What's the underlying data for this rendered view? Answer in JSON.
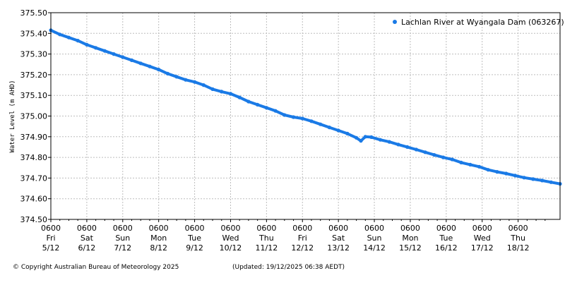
{
  "chart_data": {
    "type": "scatter",
    "ylabel": "Water Level (m AHD)",
    "ylim": [
      374.5,
      375.5
    ],
    "yticks": [
      "374.50",
      "374.60",
      "374.70",
      "374.80",
      "374.90",
      "375.00",
      "375.10",
      "375.20",
      "375.30",
      "375.40",
      "375.50"
    ],
    "xlim_hours": [
      0,
      340
    ],
    "xticks": [
      {
        "time": "0600",
        "day": "Fri",
        "date": "5/12"
      },
      {
        "time": "0600",
        "day": "Sat",
        "date": "6/12"
      },
      {
        "time": "0600",
        "day": "Sun",
        "date": "7/12"
      },
      {
        "time": "0600",
        "day": "Mon",
        "date": "8/12"
      },
      {
        "time": "0600",
        "day": "Tue",
        "date": "9/12"
      },
      {
        "time": "0600",
        "day": "Wed",
        "date": "10/12"
      },
      {
        "time": "0600",
        "day": "Thu",
        "date": "11/12"
      },
      {
        "time": "0600",
        "day": "Fri",
        "date": "12/12"
      },
      {
        "time": "0600",
        "day": "Sat",
        "date": "13/12"
      },
      {
        "time": "0600",
        "day": "Sun",
        "date": "14/12"
      },
      {
        "time": "0600",
        "day": "Mon",
        "date": "15/12"
      },
      {
        "time": "0600",
        "day": "Tue",
        "date": "16/12"
      },
      {
        "time": "0600",
        "day": "Wed",
        "date": "17/12"
      },
      {
        "time": "0600",
        "day": "Thu",
        "date": "18/12"
      }
    ],
    "grid": true,
    "legend_position": "top-right",
    "series": [
      {
        "name": "Lachlan River at Wyangala Dam (063267)",
        "color": "#1a7ae6",
        "points": [
          [
            0,
            375.415
          ],
          [
            6,
            375.395
          ],
          [
            12,
            375.38
          ],
          [
            18,
            375.365
          ],
          [
            24,
            375.345
          ],
          [
            30,
            375.33
          ],
          [
            36,
            375.315
          ],
          [
            42,
            375.3
          ],
          [
            48,
            375.285
          ],
          [
            54,
            375.27
          ],
          [
            60,
            375.255
          ],
          [
            66,
            375.24
          ],
          [
            72,
            375.225
          ],
          [
            78,
            375.205
          ],
          [
            84,
            375.19
          ],
          [
            90,
            375.175
          ],
          [
            96,
            375.165
          ],
          [
            102,
            375.15
          ],
          [
            108,
            375.13
          ],
          [
            114,
            375.118
          ],
          [
            120,
            375.108
          ],
          [
            126,
            375.09
          ],
          [
            132,
            375.07
          ],
          [
            138,
            375.055
          ],
          [
            144,
            375.04
          ],
          [
            150,
            375.025
          ],
          [
            156,
            375.005
          ],
          [
            162,
            374.995
          ],
          [
            168,
            374.988
          ],
          [
            174,
            374.975
          ],
          [
            180,
            374.96
          ],
          [
            186,
            374.945
          ],
          [
            192,
            374.93
          ],
          [
            198,
            374.915
          ],
          [
            204,
            374.895
          ],
          [
            207,
            374.88
          ],
          [
            210,
            374.9
          ],
          [
            214,
            374.898
          ],
          [
            220,
            374.885
          ],
          [
            226,
            374.875
          ],
          [
            232,
            374.862
          ],
          [
            238,
            374.85
          ],
          [
            244,
            374.838
          ],
          [
            250,
            374.825
          ],
          [
            256,
            374.812
          ],
          [
            262,
            374.8
          ],
          [
            268,
            374.79
          ],
          [
            274,
            374.775
          ],
          [
            280,
            374.765
          ],
          [
            286,
            374.755
          ],
          [
            292,
            374.74
          ],
          [
            298,
            374.73
          ],
          [
            304,
            374.722
          ],
          [
            310,
            374.712
          ],
          [
            316,
            374.702
          ],
          [
            322,
            374.695
          ],
          [
            328,
            374.688
          ],
          [
            334,
            374.68
          ],
          [
            340,
            374.672
          ]
        ]
      }
    ]
  },
  "footer": {
    "copyright": "© Copyright Australian Bureau of Meteorology 2025",
    "updated": "(Updated: 19/12/2025 06:38 AEDT)"
  }
}
